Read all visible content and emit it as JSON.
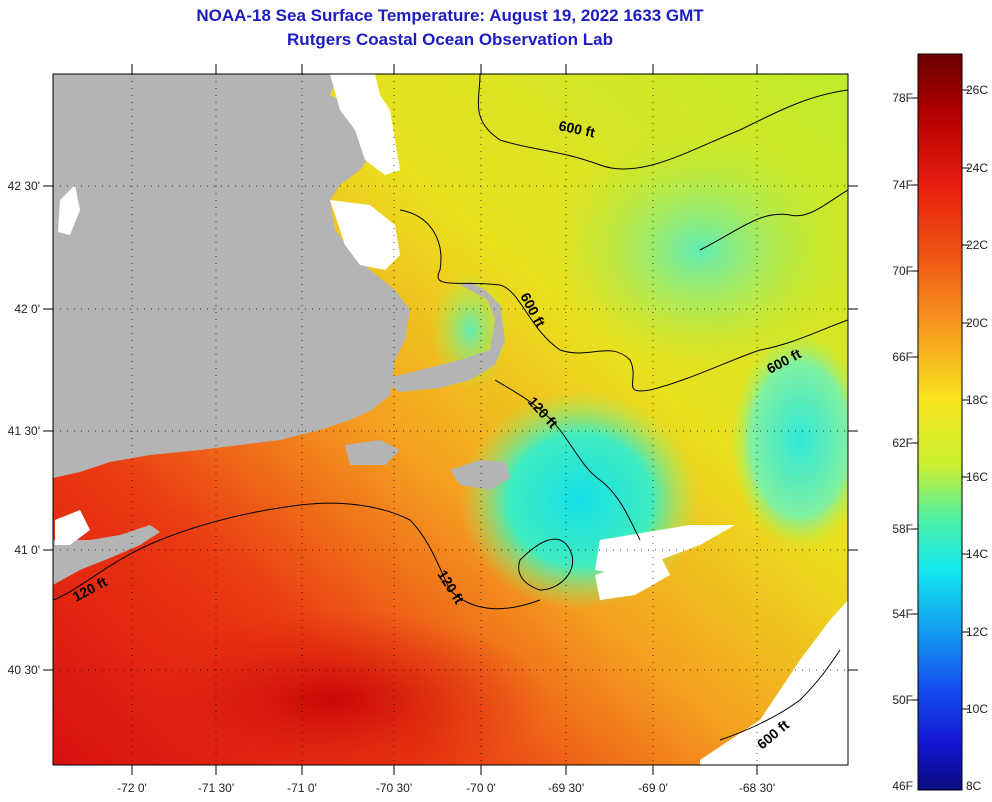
{
  "header": {
    "title": "NOAA-18 Sea Surface Temperature:  August 19, 2022 1633 GMT",
    "subtitle": "Rutgers Coastal Ocean Observation Lab"
  },
  "map": {
    "lon_labels": [
      "-72 0'",
      "-71 30'",
      "-71 0'",
      "-70 30'",
      "-70 0'",
      "-69 30'",
      "-69 0'",
      "-68 30'"
    ],
    "lat_labels": [
      "42 30'",
      "42 0'",
      "41 30'",
      "41 0'",
      "40 30'"
    ],
    "contour_labels": [
      "600 ft",
      "600 ft",
      "600 ft",
      "600 ft",
      "120 ft",
      "120 ft",
      "120 ft"
    ]
  },
  "colorbar": {
    "fahrenheit_labels": [
      "78F",
      "74F",
      "70F",
      "66F",
      "62F",
      "58F",
      "54F",
      "50F",
      "46F"
    ],
    "celsius_labels": [
      "26C",
      "24C",
      "22C",
      "20C",
      "18C",
      "16C",
      "14C",
      "12C",
      "10C",
      "8C"
    ],
    "colors": [
      "#6b0000",
      "#b30000",
      "#e81e10",
      "#f05a14",
      "#f8a01e",
      "#f8e41e",
      "#c8f030",
      "#50f0a0",
      "#14e8f0",
      "#14a0f0",
      "#1450f0",
      "#1414d0",
      "#0c0c80"
    ]
  },
  "colors": {
    "land": "#b4b4b4",
    "cloud": "#ffffff",
    "title": "#1c1cc0"
  }
}
